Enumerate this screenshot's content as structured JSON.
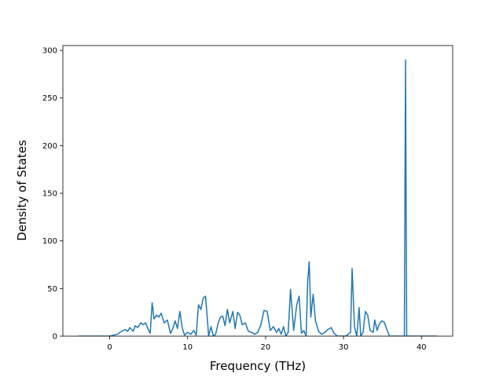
{
  "chart_data": {
    "type": "line",
    "title": "",
    "xlabel": "Frequency (THz)",
    "ylabel": "Density of States",
    "xlim": [
      -6,
      44
    ],
    "ylim": [
      0,
      305
    ],
    "xticks": [
      0,
      10,
      20,
      30,
      40
    ],
    "yticks": [
      0,
      50,
      100,
      150,
      200,
      250,
      300
    ],
    "grid": false,
    "legend": "none",
    "line_color": "#1f77b4",
    "series": [
      {
        "x": [
          -4.0,
          -2.0,
          0.0,
          1.0,
          1.5,
          2.0,
          2.3,
          2.6,
          3.0,
          3.3,
          3.6,
          4.0,
          4.3,
          4.6,
          4.9,
          5.2,
          5.45,
          5.7,
          6.0,
          6.3,
          6.6,
          7.0,
          7.4,
          7.8,
          8.1,
          8.4,
          8.7,
          9.0,
          9.3,
          9.6,
          10.0,
          10.4,
          10.8,
          11.1,
          11.4,
          11.7,
          12.0,
          12.3,
          12.7,
          13.0,
          13.3,
          13.6,
          13.9,
          14.2,
          14.5,
          14.8,
          15.1,
          15.4,
          15.8,
          16.1,
          16.4,
          16.7,
          17.0,
          17.4,
          17.8,
          18.2,
          18.6,
          19.0,
          19.4,
          19.8,
          20.2,
          20.6,
          21.0,
          21.4,
          21.7,
          22.0,
          22.3,
          22.6,
          22.9,
          23.2,
          23.6,
          24.0,
          24.3,
          24.6,
          24.9,
          25.2,
          25.4,
          25.6,
          25.8,
          26.1,
          26.4,
          26.8,
          27.2,
          27.6,
          28.0,
          28.4,
          28.8,
          29.2,
          29.6,
          30.0,
          30.3,
          30.6,
          30.9,
          31.1,
          31.4,
          31.7,
          32.0,
          32.2,
          32.5,
          32.8,
          33.1,
          33.4,
          33.8,
          34.0,
          34.3,
          34.6,
          34.9,
          35.2,
          35.6,
          35.9,
          36.2,
          36.6,
          37.0,
          37.4,
          37.6,
          37.8,
          37.95,
          38.1,
          38.3,
          38.6,
          39.0,
          40.0,
          42.0
        ],
        "y": [
          0,
          0,
          0,
          2,
          5,
          7,
          5,
          9,
          5,
          11,
          9,
          14,
          12,
          14,
          8,
          3,
          35,
          18,
          22,
          20,
          24,
          14,
          17,
          3,
          8,
          16,
          8,
          26,
          9,
          1,
          4,
          2,
          6,
          1,
          33,
          28,
          40,
          42,
          0,
          10,
          0,
          2,
          13,
          20,
          21,
          11,
          28,
          14,
          26,
          8,
          25,
          22,
          12,
          14,
          5,
          4,
          2,
          4,
          12,
          27,
          26,
          6,
          10,
          4,
          8,
          2,
          10,
          0,
          4,
          49,
          6,
          33,
          42,
          3,
          6,
          0,
          58,
          78,
          20,
          44,
          16,
          5,
          2,
          4,
          7,
          9,
          3,
          0,
          0,
          0,
          0,
          2,
          4,
          71,
          10,
          0,
          30,
          0,
          4,
          26,
          22,
          6,
          4,
          17,
          6,
          13,
          16,
          15,
          6,
          0,
          0,
          0,
          0,
          0,
          0,
          0,
          290,
          0,
          0,
          0,
          0,
          0,
          0
        ]
      }
    ]
  }
}
